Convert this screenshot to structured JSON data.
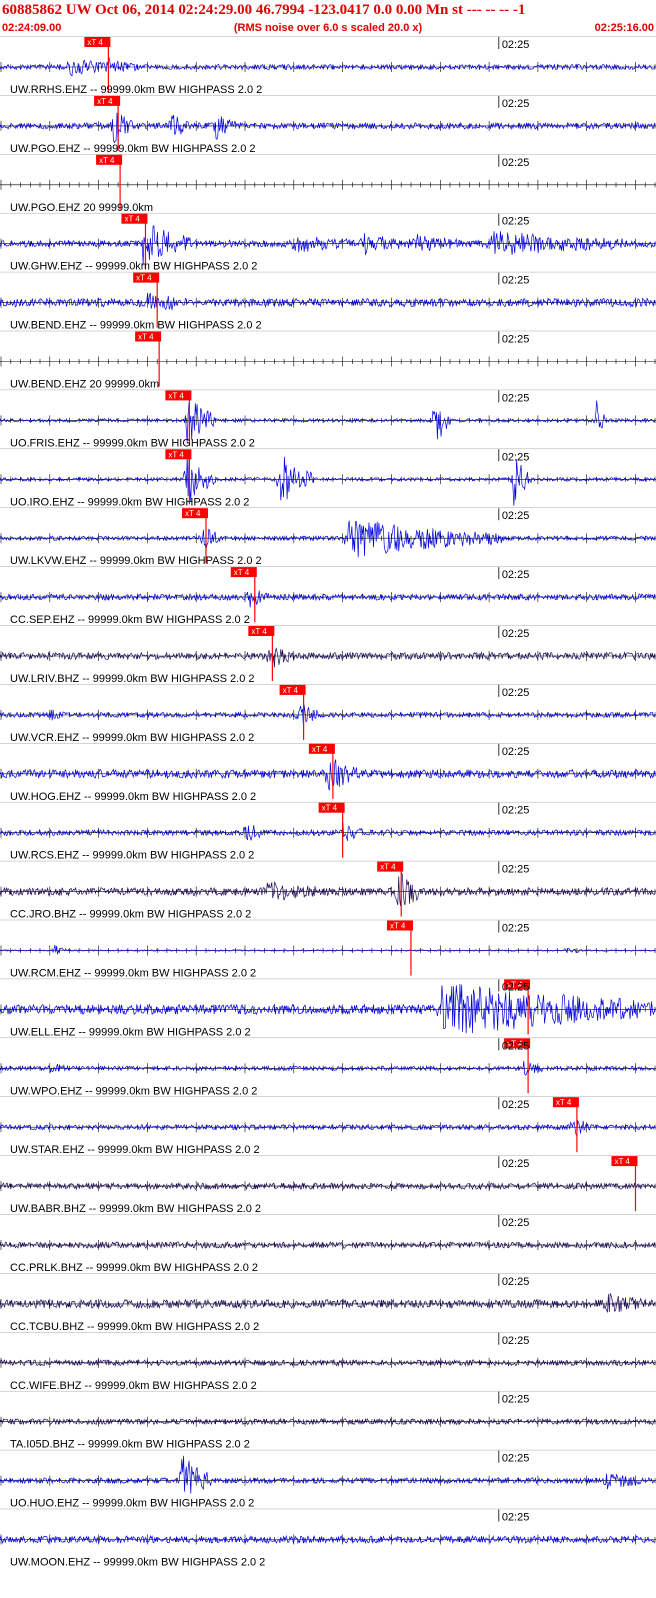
{
  "header": {
    "title": "60885862 UW Oct 06, 2014 02:24:29.00   46.7994 -123.0417  0.0 0.00 Mn st --- -- --  -1",
    "start_time": "02:24:09.00",
    "note": "(RMS noise over 6.0 s scaled 20.0 x)",
    "end_time": "02:25:16.00"
  },
  "colors": {
    "header_text": "#e00000",
    "trace_ehz": "#0000e0",
    "trace_bhz": "#1e0a5a",
    "pick": "#ff0000",
    "grid": "#000000"
  },
  "chart_data": {
    "type": "line",
    "title": "60885862 UW Oct 06, 2014 02:24:29.00   46.7994 -123.0417  0.0 0.00 Mn st --- -- --  -1",
    "time_window": [
      "02:24:09.00",
      "02:25:16.00"
    ],
    "minute_mark": "02:25",
    "minute_mark_seconds": 51,
    "window_seconds": 67,
    "grid": true,
    "pick_label": "xT 4",
    "traces": [
      {
        "label": "UW.RRHS.EHZ -- 99999.0km BW  HIGHPASS  2.0  2",
        "pick_s": 11,
        "kind": "ehz",
        "noise": 0.18,
        "events": [
          {
            "t": 7,
            "dur": 5,
            "amp": 0.55
          },
          {
            "t": 11,
            "dur": 3,
            "amp": 0.5
          }
        ]
      },
      {
        "label": "UW.PGO.EHZ -- 99999.0km BW  HIGHPASS  2.0  2",
        "pick_s": 12,
        "kind": "ehz",
        "noise": 0.22,
        "events": [
          {
            "t": 11.5,
            "dur": 2,
            "amp": 1.2
          },
          {
            "t": 17.5,
            "dur": 2,
            "amp": 0.9
          },
          {
            "t": 22,
            "dur": 2,
            "amp": 0.8
          }
        ]
      },
      {
        "label": "UW.PGO.EHZ 20 99999.0km",
        "pick_s": 12.2,
        "kind": "flat",
        "noise": 0,
        "events": []
      },
      {
        "label": "UW.GHW.EHZ -- 99999.0km BW  HIGHPASS  2.0  2",
        "pick_s": 14.8,
        "kind": "ehz",
        "noise": 0.25,
        "events": [
          {
            "t": 14.5,
            "dur": 5,
            "amp": 1.5
          },
          {
            "t": 30,
            "dur": 6,
            "amp": 0.45
          },
          {
            "t": 37,
            "dur": 4,
            "amp": 0.7
          },
          {
            "t": 42,
            "dur": 5,
            "amp": 0.55
          },
          {
            "t": 50,
            "dur": 14,
            "amp": 0.75
          }
        ]
      },
      {
        "label": "UW.BEND.EHZ -- 99999.0km BW  HIGHPASS  2.0  2",
        "pick_s": 16,
        "kind": "ehz",
        "noise": 0.3,
        "events": [
          {
            "t": 15,
            "dur": 3,
            "amp": 1.0
          }
        ]
      },
      {
        "label": "UW.BEND.EHZ 20 99999.0km",
        "pick_s": 16.2,
        "kind": "flat",
        "noise": 0,
        "events": []
      },
      {
        "label": "UO.FRIS.EHZ -- 99999.0km BW  HIGHPASS  2.0  2",
        "pick_s": 19.3,
        "kind": "ehz",
        "noise": 0.12,
        "events": [
          {
            "t": 19,
            "dur": 3,
            "amp": 1.9
          },
          {
            "t": 44.5,
            "dur": 1.5,
            "amp": 1.9
          },
          {
            "t": 61,
            "dur": 0.8,
            "amp": 1.6
          }
        ]
      },
      {
        "label": "UO.IRO.EHZ -- 99999.0km BW  HIGHPASS  2.0  2",
        "pick_s": 19.3,
        "kind": "ehz",
        "noise": 0.12,
        "events": [
          {
            "t": 19,
            "dur": 3,
            "amp": 1.9
          },
          {
            "t": 28.5,
            "dur": 3.5,
            "amp": 1.9
          },
          {
            "t": 52.5,
            "dur": 1.8,
            "amp": 1.9
          }
        ]
      },
      {
        "label": "UW.LKVW.EHZ -- 99999.0km BW  HIGHPASS  2.0  2",
        "pick_s": 21,
        "kind": "ehz",
        "noise": 0.15,
        "events": [
          {
            "t": 20.5,
            "dur": 2,
            "amp": 1.0
          },
          {
            "t": 35.5,
            "dur": 16,
            "amp": 1.4
          }
        ]
      },
      {
        "label": "CC.SEP.EHZ -- 99999.0km BW  HIGHPASS  2.0  2",
        "pick_s": 26,
        "kind": "ehz",
        "noise": 0.22,
        "events": [
          {
            "t": 25.5,
            "dur": 2,
            "amp": 0.7
          }
        ]
      },
      {
        "label": "UW.LRIV.BHZ -- 99999.0km BW  HIGHPASS  2.0  2",
        "pick_s": 27.8,
        "kind": "bhz",
        "noise": 0.25,
        "events": [
          {
            "t": 27.5,
            "dur": 2,
            "amp": 0.9
          }
        ]
      },
      {
        "label": "UW.VCR.EHZ -- 99999.0km BW  HIGHPASS  2.0  2",
        "pick_s": 31,
        "kind": "ehz",
        "noise": 0.18,
        "events": [
          {
            "t": 5,
            "dur": 1.5,
            "amp": 0.35
          },
          {
            "t": 30.5,
            "dur": 2,
            "amp": 0.9
          }
        ]
      },
      {
        "label": "UW.HOG.EHZ -- 99999.0km BW  HIGHPASS  2.0  2",
        "pick_s": 34,
        "kind": "ehz",
        "noise": 0.3,
        "events": [
          {
            "t": 33.5,
            "dur": 3,
            "amp": 1.2
          }
        ]
      },
      {
        "label": "UW.RCS.EHZ -- 99999.0km BW  HIGHPASS  2.0  2",
        "pick_s": 35,
        "kind": "ehz",
        "noise": 0.2,
        "events": [
          {
            "t": 25,
            "dur": 1.5,
            "amp": 1.0
          },
          {
            "t": 35,
            "dur": 2,
            "amp": 0.6
          }
        ]
      },
      {
        "label": "CC.JRO.BHZ -- 99999.0km BW  HIGHPASS  2.0  2",
        "pick_s": 41,
        "kind": "bhz",
        "noise": 0.28,
        "events": [
          {
            "t": 27,
            "dur": 6,
            "amp": 0.5
          },
          {
            "t": 40.5,
            "dur": 2.5,
            "amp": 1.5
          }
        ]
      },
      {
        "label": "UW.RCM.EHZ -- 99999.0km BW  HIGHPASS  2.0  2",
        "pick_s": 42,
        "kind": "ehz",
        "noise": 0.05,
        "events": [
          {
            "t": 5.5,
            "dur": 1.5,
            "amp": 0.35
          },
          {
            "t": 58,
            "dur": 1.5,
            "amp": 0.3
          }
        ]
      },
      {
        "label": "UW.ELL.EHZ -- 99999.0km BW  HIGHPASS  2.0  2",
        "pick_s": 54,
        "kind": "ehz",
        "noise": 0.35,
        "events": [
          {
            "t": 45,
            "dur": 22,
            "amp": 1.8
          }
        ]
      },
      {
        "label": "UW.WPO.EHZ -- 99999.0km BW  HIGHPASS  2.0  2",
        "pick_s": 54,
        "kind": "ehz",
        "noise": 0.15,
        "events": [
          {
            "t": 5,
            "dur": 2,
            "amp": 0.3
          },
          {
            "t": 53.5,
            "dur": 2,
            "amp": 0.45
          }
        ]
      },
      {
        "label": "UW.STAR.EHZ -- 99999.0km BW  HIGHPASS  2.0  2",
        "pick_s": 59,
        "kind": "ehz",
        "noise": 0.18,
        "events": [
          {
            "t": 58.5,
            "dur": 2,
            "amp": 0.7
          }
        ]
      },
      {
        "label": "UW.BABR.BHZ -- 99999.0km BW  HIGHPASS  2.0  2",
        "pick_s": 65,
        "kind": "bhz",
        "noise": 0.22,
        "events": []
      },
      {
        "label": "CC.PRLK.BHZ -- 99999.0km BW  HIGHPASS  2.0  2",
        "pick_s": null,
        "kind": "bhz",
        "noise": 0.22,
        "events": []
      },
      {
        "label": "CC.TCBU.BHZ -- 99999.0km BW  HIGHPASS  2.0  2",
        "pick_s": null,
        "kind": "bhz",
        "noise": 0.3,
        "events": [
          {
            "t": 62,
            "dur": 4,
            "amp": 0.55
          }
        ]
      },
      {
        "label": "CC.WIFE.BHZ -- 99999.0km BW  HIGHPASS  2.0  2",
        "pick_s": null,
        "kind": "bhz",
        "noise": 0.2,
        "events": []
      },
      {
        "label": "TA.I05D.BHZ -- 99999.0km BW  HIGHPASS  2.0  2",
        "pick_s": null,
        "kind": "bhz",
        "noise": 0.2,
        "events": []
      },
      {
        "label": "UO.HUO.EHZ -- 99999.0km BW  HIGHPASS  2.0  2",
        "pick_s": null,
        "kind": "ehz",
        "noise": 0.2,
        "events": [
          {
            "t": 18.5,
            "dur": 3,
            "amp": 1.9
          },
          {
            "t": 62,
            "dur": 4,
            "amp": 0.5
          }
        ]
      },
      {
        "label": "UW.MOON.EHZ -- 99999.0km BW  HIGHPASS  2.0  2",
        "pick_s": null,
        "kind": "ehz",
        "noise": 0.25,
        "events": []
      }
    ]
  }
}
